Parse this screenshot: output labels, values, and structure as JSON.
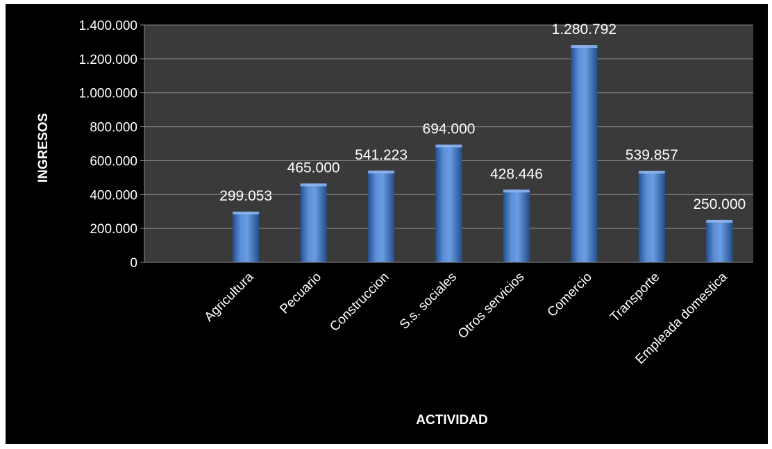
{
  "chart_data": {
    "type": "bar",
    "categories": [
      "",
      "Agricultura",
      "Pecuario",
      "Construccion",
      "S.s. sociales",
      "Otros servicios",
      "Comercio",
      "Transporte",
      "Empleada domestica"
    ],
    "values": [
      null,
      299053,
      465000,
      541223,
      694000,
      428446,
      1280792,
      539857,
      250000
    ],
    "value_labels": [
      "",
      "299.053",
      "465.000",
      "541.223",
      "694.000",
      "428.446",
      "1.280.792",
      "539.857",
      "250.000"
    ],
    "y_ticks": [
      {
        "value": 0,
        "label": "0"
      },
      {
        "value": 200000,
        "label": "200.000"
      },
      {
        "value": 400000,
        "label": "400.000"
      },
      {
        "value": 600000,
        "label": "600.000"
      },
      {
        "value": 800000,
        "label": "800.000"
      },
      {
        "value": 1000000,
        "label": "1.000.000"
      },
      {
        "value": 1200000,
        "label": "1.200.000"
      },
      {
        "value": 1400000,
        "label": "1.400.000"
      }
    ],
    "xlabel": "ACTIVIDAD",
    "ylabel": "INGRESOS",
    "ylim": [
      0,
      1400000
    ],
    "grid": true,
    "colors": {
      "background": "#000000",
      "plot_area": "#3a3a3a",
      "bar": "#3f74c4",
      "text": "#ffffff",
      "grid": "#8a8a8a"
    }
  }
}
